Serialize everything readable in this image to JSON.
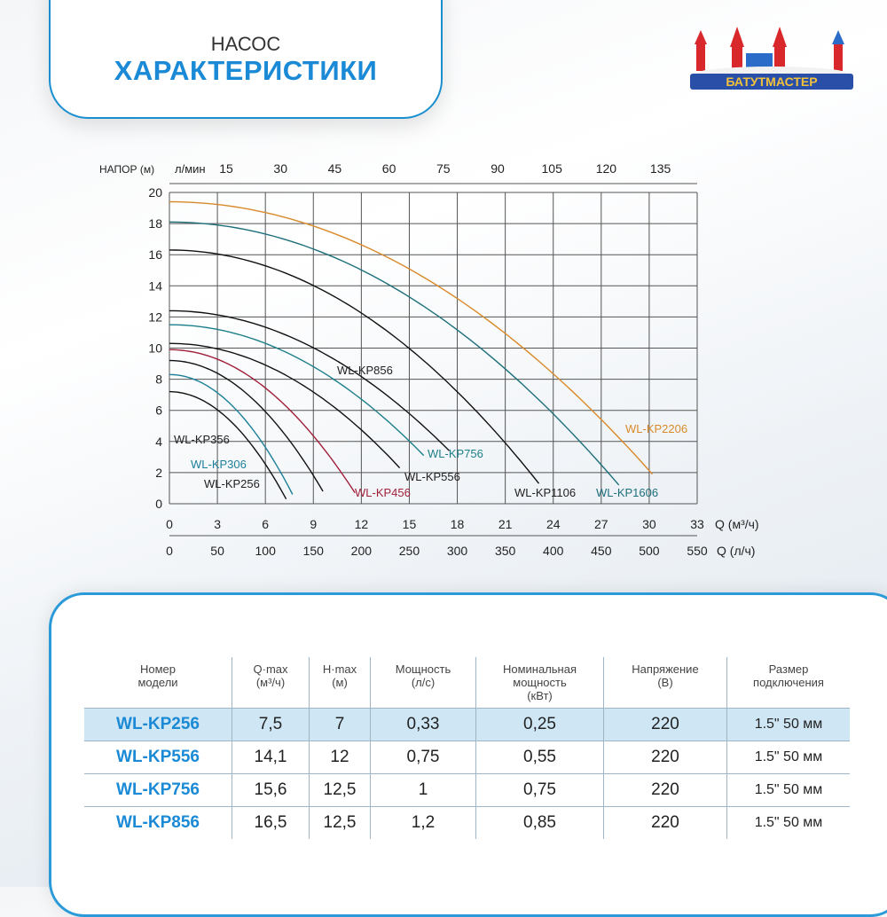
{
  "header": {
    "subtitle": "НАСОС",
    "title": "ХАРАКТЕРИСТИКИ"
  },
  "logo": {
    "text": "БАТУТМАСТЕР"
  },
  "chart_data": {
    "type": "line",
    "ylabel": "НАПОР (м)",
    "top_axis_label": "л/мин",
    "xlabel": "Q (м³/ч)",
    "xlabel2": "Q (л/ч)",
    "xlim": [
      0,
      33
    ],
    "ylim": [
      0,
      20
    ],
    "grid": true,
    "x_ticks": [
      0,
      3,
      6,
      9,
      12,
      15,
      18,
      21,
      24,
      27,
      30,
      33
    ],
    "y_ticks": [
      0,
      2,
      4,
      6,
      8,
      10,
      12,
      14,
      16,
      18,
      20
    ],
    "top_ticks": [
      "15",
      "30",
      "45",
      "60",
      "75",
      "90",
      "105",
      "120",
      "135"
    ],
    "bottom_ticks2": [
      "0",
      "50",
      "100",
      "150",
      "200",
      "250",
      "300",
      "350",
      "400",
      "450",
      "500",
      "550"
    ],
    "series": [
      {
        "name": "WL-KP256",
        "h0": 7.2,
        "end": [
          7.3,
          0.3
        ],
        "color": "#111111"
      },
      {
        "name": "WL-KP306",
        "h0": 8.3,
        "end": [
          7.7,
          0.6
        ],
        "color": "#1d7f99"
      },
      {
        "name": "WL-KP356",
        "h0": 9.2,
        "end": [
          9.6,
          0.8
        ],
        "color": "#111111"
      },
      {
        "name": "WL-KP456",
        "h0": 9.9,
        "end": [
          11.6,
          0.7
        ],
        "color": "#a01f3a"
      },
      {
        "name": "WL-KP556",
        "h0": 10.3,
        "end": [
          14.4,
          2.3
        ],
        "color": "#111111"
      },
      {
        "name": "WL-KP756",
        "h0": 11.5,
        "end": [
          15.9,
          3.1
        ],
        "color": "#1d7f8a"
      },
      {
        "name": "WL-KP856",
        "h0": 12.4,
        "end": [
          17.5,
          3.4
        ],
        "color": "#111111"
      },
      {
        "name": "WL-KP1106",
        "h0": 16.3,
        "end": [
          23.1,
          1.3
        ],
        "color": "#111111"
      },
      {
        "name": "WL-KP1606",
        "h0": 18.1,
        "end": [
          28.1,
          1.2
        ],
        "color": "#1d6f7a"
      },
      {
        "name": "WL-KP2206",
        "h0": 19.4,
        "end": [
          30.2,
          1.9
        ],
        "color": "#d88a2a"
      }
    ]
  },
  "table": {
    "headers": [
      "Номер\nмодели",
      "Q·max\n(м³/ч)",
      "H·max\n(м)",
      "Мощность\n(л/с)",
      "Номинальная\nмощность\n(кВт)",
      "Напряжение\n(В)",
      "Размер\nподключения"
    ],
    "rows": [
      [
        "WL-KP256",
        "7,5",
        "7",
        "0,33",
        "0,25",
        "220",
        "1.5\" 50 мм"
      ],
      [
        "WL-KP556",
        "14,1",
        "12",
        "0,75",
        "0,55",
        "220",
        "1.5\" 50 мм"
      ],
      [
        "WL-KP756",
        "15,6",
        "12,5",
        "1",
        "0,75",
        "220",
        "1.5\" 50 мм"
      ],
      [
        "WL-KP856",
        "16,5",
        "12,5",
        "1,2",
        "0,85",
        "220",
        "1.5\" 50 мм"
      ]
    ],
    "highlight_color": "#cfe6f5",
    "accent": "#1a8ad6"
  }
}
